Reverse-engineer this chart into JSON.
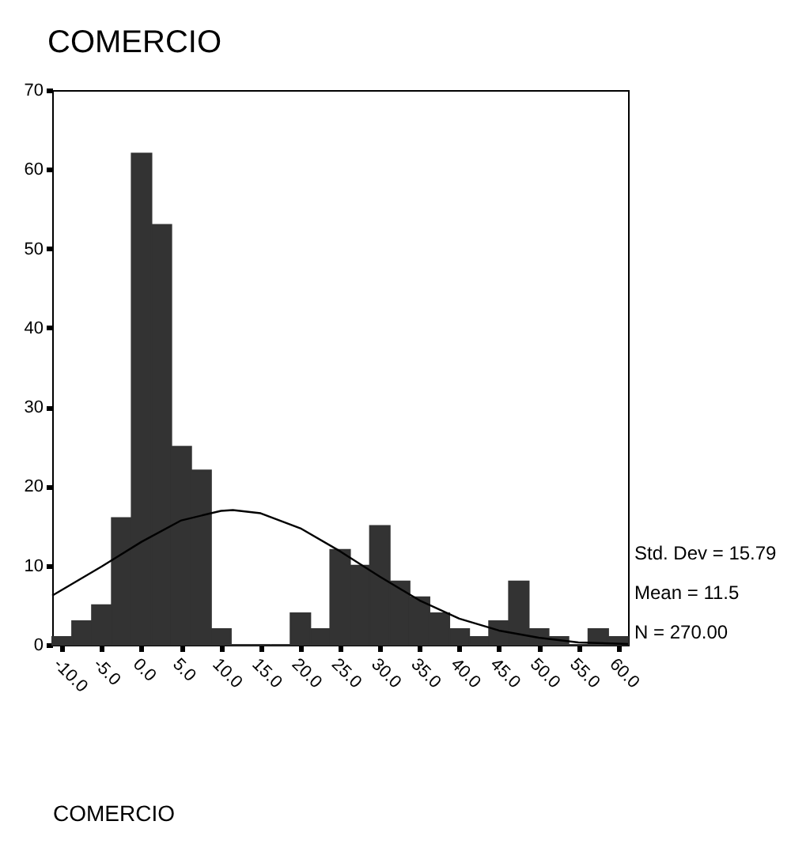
{
  "chart_data": {
    "type": "histogram",
    "title": "COMERCIO",
    "xlabel": "COMERCIO",
    "bins": [
      -11.25,
      -8.75,
      -6.25,
      -3.75,
      -1.25,
      1.25,
      3.75,
      6.25,
      8.75,
      11.25,
      13.75,
      16.25,
      18.75,
      21.25,
      23.75,
      26.25,
      28.75,
      31.25,
      33.75,
      36.25,
      38.75,
      41.25,
      43.75,
      46.25,
      48.75,
      51.25,
      53.75,
      56.25,
      58.75,
      61.25
    ],
    "values": [
      1,
      3,
      5,
      16,
      62,
      53,
      25,
      22,
      2,
      0,
      0,
      0,
      4,
      2,
      12,
      10,
      15,
      8,
      6,
      4,
      2,
      1,
      3,
      8,
      2,
      1,
      0,
      2,
      1
    ],
    "color": "#333333",
    "series": [
      {
        "type": "line",
        "color": "#000000",
        "x": [
          -11.25,
          -5,
          0,
          5,
          10,
          11.5,
          15,
          20,
          25,
          30,
          35,
          40,
          45,
          50,
          55,
          61.25
        ],
        "values": [
          6.2,
          9.9,
          13.0,
          15.7,
          16.9,
          17.0,
          16.6,
          14.7,
          11.8,
          8.6,
          5.6,
          3.3,
          1.8,
          0.9,
          0.3,
          0.1
        ]
      }
    ],
    "xlim": [
      -11.25,
      61.25
    ],
    "xticks": [
      {
        "value": -10,
        "label": "-10.0"
      },
      {
        "value": -5,
        "label": "-5.0"
      },
      {
        "value": 0,
        "label": "0.0"
      },
      {
        "value": 5,
        "label": "5.0"
      },
      {
        "value": 10,
        "label": "10.0"
      },
      {
        "value": 15,
        "label": "15.0"
      },
      {
        "value": 20,
        "label": "20.0"
      },
      {
        "value": 25,
        "label": "25.0"
      },
      {
        "value": 30,
        "label": "30.0"
      },
      {
        "value": 35,
        "label": "35.0"
      },
      {
        "value": 40,
        "label": "40.0"
      },
      {
        "value": 45,
        "label": "45.0"
      },
      {
        "value": 50,
        "label": "50.0"
      },
      {
        "value": 55,
        "label": "55.0"
      },
      {
        "value": 60,
        "label": "60.0"
      }
    ],
    "ylim": [
      0,
      70
    ],
    "yticks": [
      0,
      10,
      20,
      30,
      40,
      50,
      60,
      70
    ],
    "grid": false,
    "annotations": [
      "Std. Dev = 15.79",
      "Mean = 11.5",
      "N = 270.00"
    ]
  }
}
